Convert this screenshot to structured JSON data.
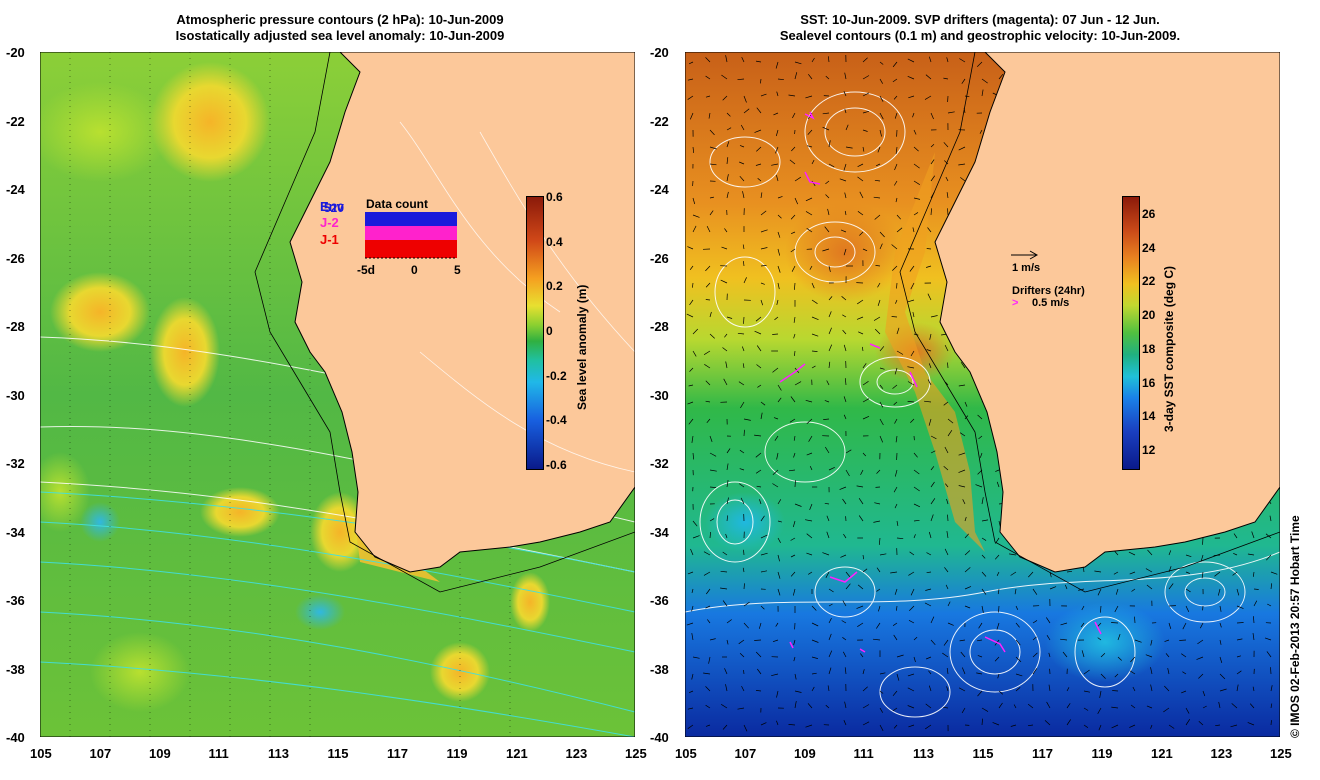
{
  "left_panel": {
    "title_line1": "Atmospheric pressure contours (2 hPa): 10-Jun-2009",
    "title_line2": "Isostatically adjusted sea level anomaly: 10-Jun-2009",
    "x_ticks": [
      "105",
      "107",
      "109",
      "111",
      "113",
      "115",
      "117",
      "119",
      "121",
      "123",
      "125"
    ],
    "y_ticks": [
      "-20",
      "-22",
      "-24",
      "-26",
      "-28",
      "-30",
      "-32",
      "-34",
      "-36",
      "-38",
      "-40"
    ],
    "colorbar": {
      "label": "Sea level anomaly (m)",
      "ticks": [
        "0.6",
        "0.4",
        "0.2",
        "0",
        "-0.2",
        "-0.4",
        "-0.6"
      ]
    },
    "data_count": {
      "title": "Data count",
      "series": [
        {
          "name": "Env",
          "color": "#1a1adb"
        },
        {
          "name": "J-2",
          "color": "#ff22cc"
        },
        {
          "name": "J-1",
          "color": "#ee0000"
        }
      ],
      "overlap_label": "520",
      "x_ticks": [
        "-5d",
        "0",
        "5"
      ]
    }
  },
  "right_panel": {
    "title_line1": "SST: 10-Jun-2009. SVP drifters (magenta): 07 Jun - 12 Jun.",
    "title_line2": "Sealevel contours (0.1 m) and geostrophic velocity: 10-Jun-2009.",
    "x_ticks": [
      "105",
      "107",
      "109",
      "111",
      "113",
      "115",
      "117",
      "119",
      "121",
      "123",
      "125"
    ],
    "y_ticks": [
      "-20",
      "-22",
      "-24",
      "-26",
      "-28",
      "-30",
      "-32",
      "-34",
      "-36",
      "-38",
      "-40"
    ],
    "colorbar": {
      "label": "3-day SST composite (deg C)",
      "ticks": [
        "26",
        "24",
        "22",
        "20",
        "18",
        "16",
        "14",
        "12"
      ]
    },
    "legend": {
      "velocity": "1 m/s",
      "drifters_title": "Drifters (24hr)",
      "drifters_speed": "0.5 m/s"
    }
  },
  "credit": "© IMOS 02-Feb-2013 20:57 Hobart Time",
  "colors": {
    "land": "#fcc89a",
    "coast": "#000000",
    "drifter": "#ff22ff"
  }
}
